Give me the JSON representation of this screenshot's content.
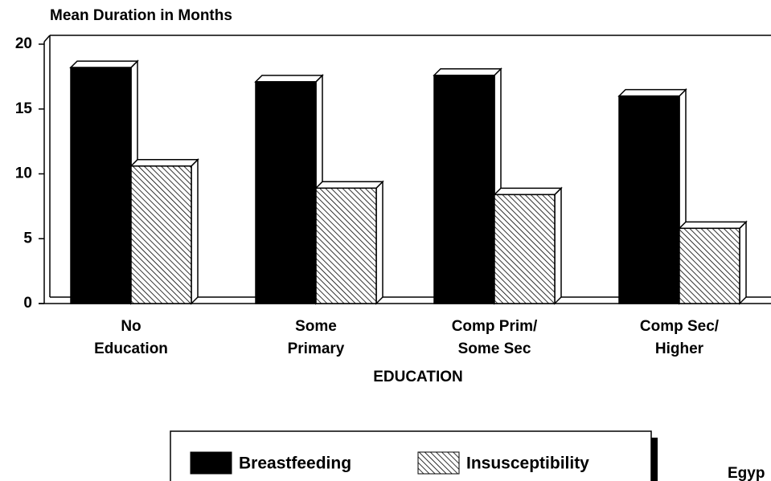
{
  "chart_data": {
    "type": "bar3d",
    "title": "Mean Duration in Months",
    "x_label": "EDUCATION",
    "categories": [
      [
        "No",
        "Education"
      ],
      [
        "Some",
        "Primary"
      ],
      [
        "Comp Prim/",
        "Some Sec"
      ],
      [
        "Comp Sec/",
        "Higher"
      ]
    ],
    "series": [
      {
        "name": "Breastfeeding",
        "color": "#000000",
        "fill": "solid",
        "values": [
          18.2,
          17.1,
          17.6,
          16.0
        ]
      },
      {
        "name": "Insusceptibility",
        "color": "#000000",
        "fill": "hatch",
        "values": [
          10.6,
          8.9,
          8.4,
          5.8
        ]
      }
    ],
    "ylim": [
      0,
      20
    ],
    "yticks": [
      0,
      5,
      10,
      15,
      20
    ],
    "legend": "bottom",
    "note": "Egyp"
  }
}
